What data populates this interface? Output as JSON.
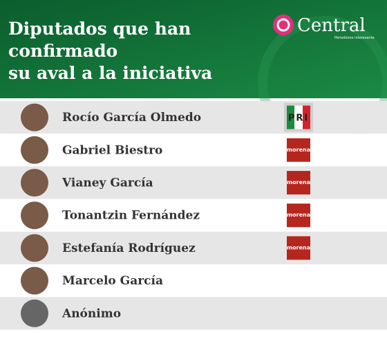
{
  "header": {
    "title_lines": [
      "Diputados que han",
      "confirmado",
      "su aval a la iniciativa"
    ],
    "brand": "Central",
    "brand_tagline": "Periodismo interesante"
  },
  "rows": [
    {
      "name": "Rocío García Olmedo",
      "party": "PRI"
    },
    {
      "name": "Gabriel Biestro",
      "party": "morena"
    },
    {
      "name": "Vianey García",
      "party": "morena"
    },
    {
      "name": "Tonantzin Fernández",
      "party": "morena"
    },
    {
      "name": "Estefanía Rodríguez",
      "party": "morena"
    },
    {
      "name": "Marcelo García",
      "party": null
    },
    {
      "name": "Anónimo",
      "party": null
    }
  ]
}
